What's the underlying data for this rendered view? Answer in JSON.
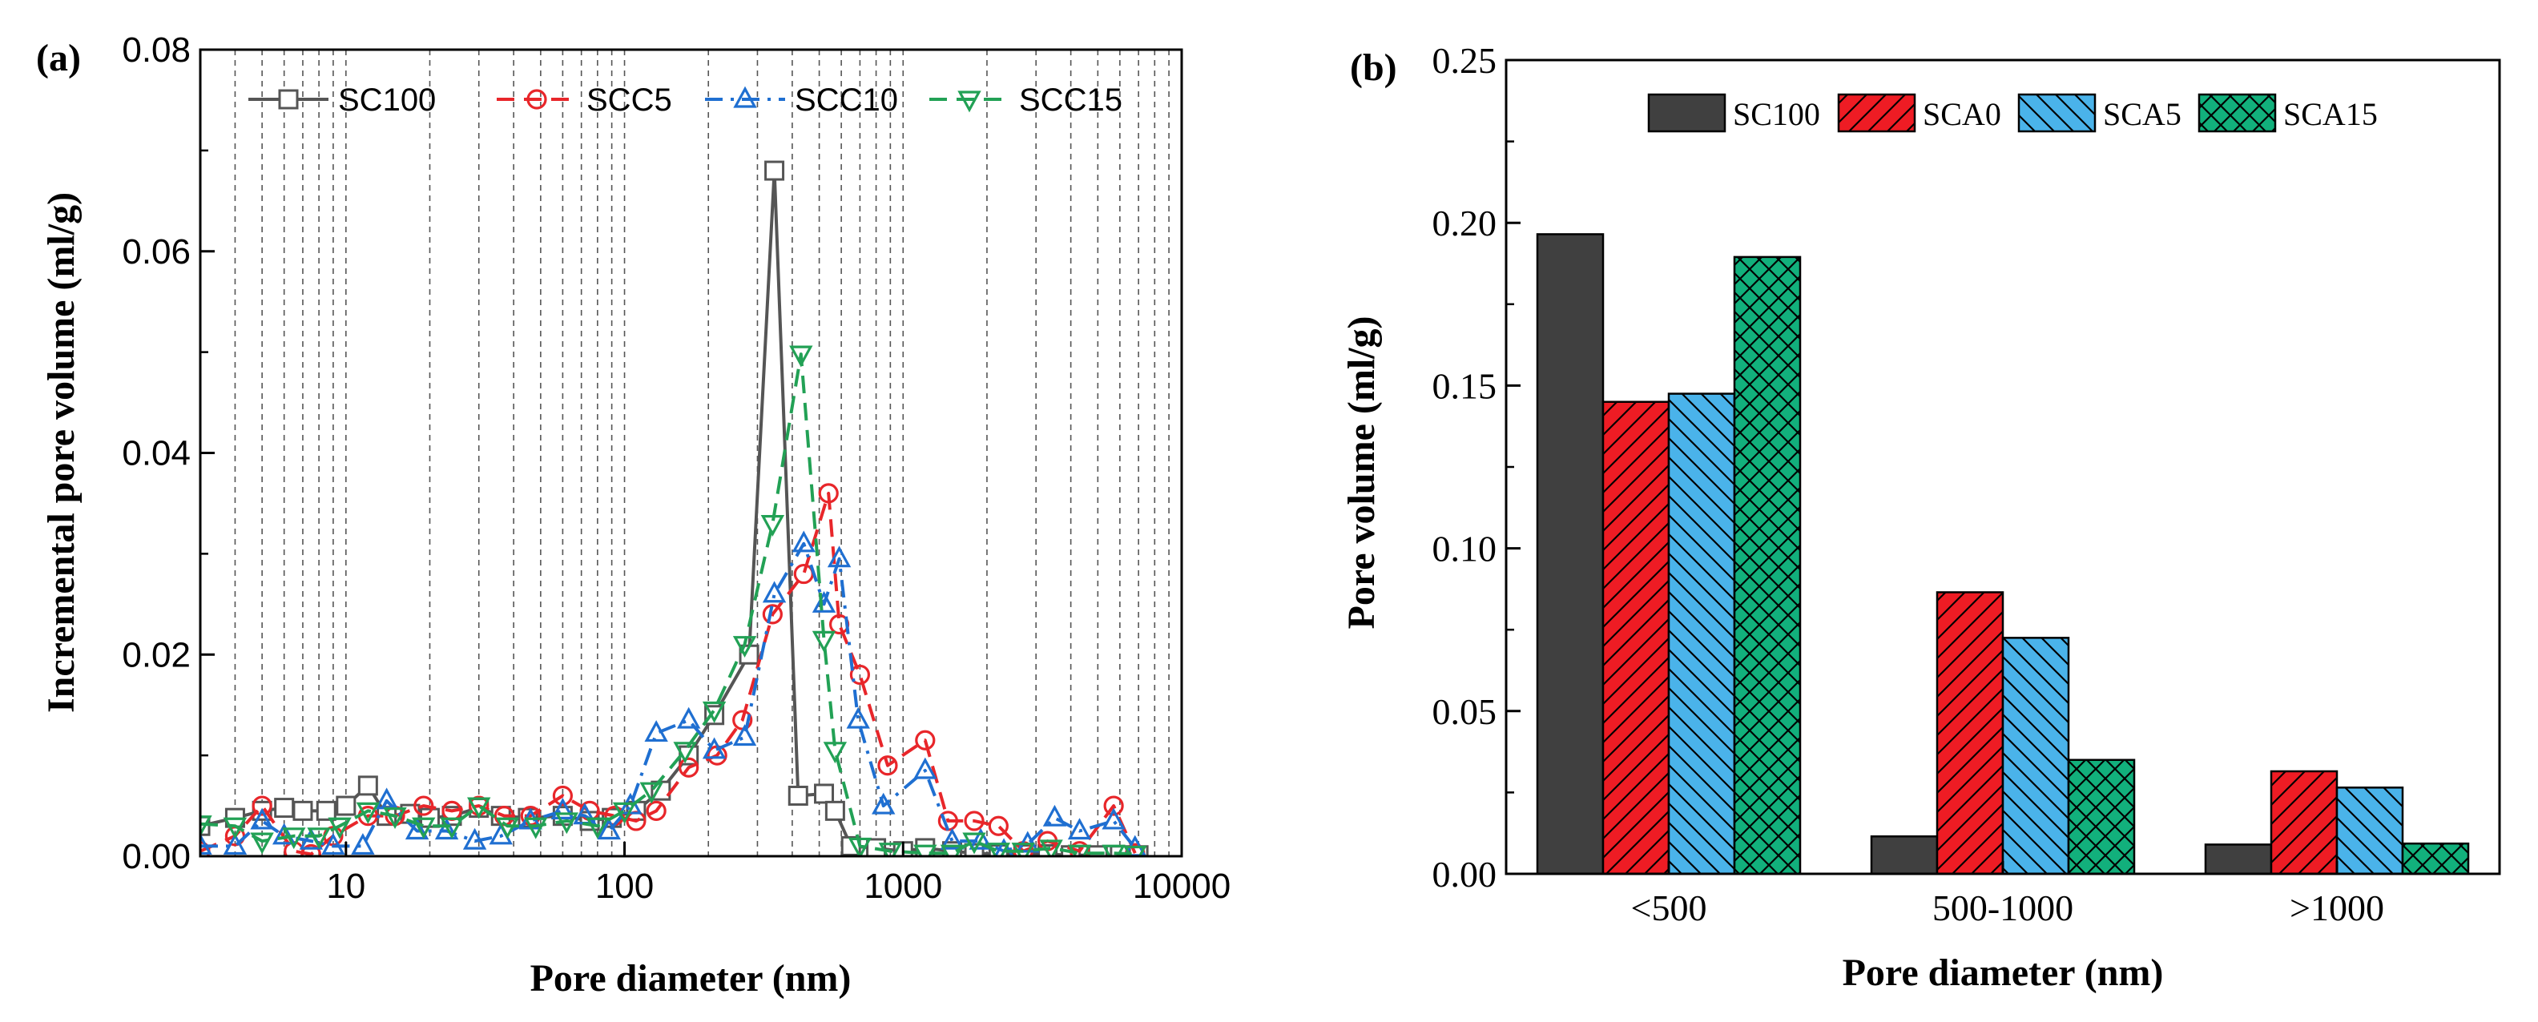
{
  "chart_data": [
    {
      "id": "a",
      "panel_label": "(a)",
      "type": "line",
      "xscale": "log",
      "xlim": [
        3,
        10000
      ],
      "ylim": [
        0,
        0.08
      ],
      "xlabel": "Pore diameter (nm)",
      "ylabel": "Incremental pore volume (ml/g)",
      "xticks": [
        10,
        100,
        1000,
        10000
      ],
      "xtick_labels": [
        "10",
        "100",
        "1000",
        "10000"
      ],
      "yticks": [
        0,
        0.02,
        0.04,
        0.06,
        0.08
      ],
      "ytick_labels": [
        "0.00",
        "0.02",
        "0.04",
        "0.06",
        "0.08"
      ],
      "grid": "vertical dashed at log minor ticks",
      "legend_position": "top",
      "series": [
        {
          "name": "SC100",
          "color": "#555555",
          "marker": "square",
          "dash": "solid",
          "points": [
            [
              3,
              0.003
            ],
            [
              4,
              0.0038
            ],
            [
              5,
              0.0045
            ],
            [
              6,
              0.0048
            ],
            [
              7,
              0.0045
            ],
            [
              8.5,
              0.0045
            ],
            [
              10,
              0.005
            ],
            [
              12,
              0.007
            ],
            [
              14,
              0.004
            ],
            [
              17,
              0.0042
            ],
            [
              20,
              0.0038
            ],
            [
              24,
              0.004
            ],
            [
              30,
              0.0048
            ],
            [
              36,
              0.004
            ],
            [
              45,
              0.0038
            ],
            [
              60,
              0.004
            ],
            [
              75,
              0.0035
            ],
            [
              90,
              0.0038
            ],
            [
              110,
              0.0045
            ],
            [
              135,
              0.0065
            ],
            [
              170,
              0.01
            ],
            [
              210,
              0.014
            ],
            [
              280,
              0.02
            ],
            [
              345,
              0.068
            ],
            [
              420,
              0.006
            ],
            [
              520,
              0.0062
            ],
            [
              570,
              0.0045
            ],
            [
              650,
              0.001
            ],
            [
              800,
              0.0008
            ],
            [
              1000,
              0.0005
            ],
            [
              1200,
              0.0008
            ],
            [
              1500,
              0.0005
            ],
            [
              1800,
              0.0003
            ],
            [
              2200,
              0.0002
            ],
            [
              2700,
              0.0002
            ],
            [
              3300,
              0.0002
            ],
            [
              4000,
              0.0001
            ],
            [
              5000,
              0.0001
            ],
            [
              6000,
              0.0001
            ],
            [
              7000,
              0.0001
            ]
          ]
        },
        {
          "name": "SCC5",
          "color": "#e8262a",
          "marker": "circle",
          "dash": "dash",
          "points": [
            [
              3,
              0.0005
            ],
            [
              4,
              0.002
            ],
            [
              5,
              0.005
            ],
            [
              6.5,
              0.0005
            ],
            [
              7.5,
              0.0002
            ],
            [
              9,
              0.002
            ],
            [
              12,
              0.004
            ],
            [
              15,
              0.004
            ],
            [
              19,
              0.005
            ],
            [
              24,
              0.0045
            ],
            [
              30,
              0.005
            ],
            [
              37,
              0.004
            ],
            [
              46,
              0.004
            ],
            [
              60,
              0.006
            ],
            [
              75,
              0.0045
            ],
            [
              92,
              0.004
            ],
            [
              110,
              0.0035
            ],
            [
              130,
              0.0045
            ],
            [
              170,
              0.0088
            ],
            [
              215,
              0.01
            ],
            [
              265,
              0.0135
            ],
            [
              340,
              0.024
            ],
            [
              440,
              0.028
            ],
            [
              540,
              0.036
            ],
            [
              590,
              0.023
            ],
            [
              700,
              0.018
            ],
            [
              880,
              0.009
            ],
            [
              1200,
              0.0115
            ],
            [
              1450,
              0.0035
            ],
            [
              1800,
              0.0035
            ],
            [
              2200,
              0.003
            ],
            [
              2700,
              0.0005
            ],
            [
              3300,
              0.0015
            ],
            [
              4300,
              0.0005
            ],
            [
              5700,
              0.005
            ],
            [
              6800,
              0.0003
            ]
          ]
        },
        {
          "name": "SCC10",
          "color": "#1f6fd1",
          "marker": "triangle-up",
          "dash": "dashdot",
          "points": [
            [
              3,
              0.001
            ],
            [
              4,
              0.001
            ],
            [
              5,
              0.0035
            ],
            [
              6,
              0.002
            ],
            [
              7.5,
              0.0015
            ],
            [
              9,
              0.001
            ],
            [
              11.5,
              0.001
            ],
            [
              14,
              0.0055
            ],
            [
              18,
              0.0025
            ],
            [
              23,
              0.0025
            ],
            [
              29,
              0.0015
            ],
            [
              36,
              0.002
            ],
            [
              46,
              0.0035
            ],
            [
              60,
              0.0045
            ],
            [
              72,
              0.004
            ],
            [
              88,
              0.0025
            ],
            [
              105,
              0.005
            ],
            [
              130,
              0.0122
            ],
            [
              170,
              0.0135
            ],
            [
              210,
              0.0105
            ],
            [
              270,
              0.0118
            ],
            [
              345,
              0.026
            ],
            [
              440,
              0.031
            ],
            [
              520,
              0.025
            ],
            [
              590,
              0.0295
            ],
            [
              690,
              0.0135
            ],
            [
              850,
              0.005
            ],
            [
              1200,
              0.0085
            ],
            [
              1500,
              0.0015
            ],
            [
              1900,
              0.0015
            ],
            [
              2300,
              0.0005
            ],
            [
              2800,
              0.0012
            ],
            [
              3500,
              0.0038
            ],
            [
              4300,
              0.0025
            ],
            [
              5700,
              0.0035
            ],
            [
              6800,
              0.0008
            ]
          ]
        },
        {
          "name": "SCC15",
          "color": "#22a155",
          "marker": "triangle-down",
          "dash": "dash",
          "points": [
            [
              3,
              0.0032
            ],
            [
              4,
              0.003
            ],
            [
              5,
              0.0015
            ],
            [
              6.5,
              0.002
            ],
            [
              8,
              0.002
            ],
            [
              9.5,
              0.003
            ],
            [
              12,
              0.0045
            ],
            [
              15,
              0.004
            ],
            [
              19,
              0.003
            ],
            [
              24,
              0.003
            ],
            [
              30,
              0.005
            ],
            [
              38,
              0.003
            ],
            [
              48,
              0.003
            ],
            [
              62,
              0.0035
            ],
            [
              80,
              0.003
            ],
            [
              100,
              0.0045
            ],
            [
              125,
              0.0065
            ],
            [
              165,
              0.0105
            ],
            [
              210,
              0.0145
            ],
            [
              270,
              0.021
            ],
            [
              340,
              0.033
            ],
            [
              430,
              0.0498
            ],
            [
              520,
              0.0215
            ],
            [
              570,
              0.0105
            ],
            [
              700,
              0.001
            ],
            [
              900,
              0.0005
            ],
            [
              1200,
              0.0003
            ],
            [
              1500,
              0.0003
            ],
            [
              1800,
              0.0015
            ],
            [
              2200,
              0.0005
            ],
            [
              2700,
              0.0005
            ],
            [
              3400,
              0.0008
            ],
            [
              4300,
              0.0003
            ],
            [
              5700,
              0.0003
            ],
            [
              6800,
              0.0002
            ]
          ]
        }
      ]
    },
    {
      "id": "b",
      "panel_label": "(b)",
      "type": "bar",
      "categories": [
        "<500",
        "500-1000",
        ">1000"
      ],
      "xlabel": "Pore diameter (nm)",
      "ylabel": "Pore volume (ml/g)",
      "ylim": [
        0,
        0.25
      ],
      "yticks": [
        0,
        0.05,
        0.1,
        0.15,
        0.2,
        0.25
      ],
      "ytick_labels": [
        "0.00",
        "0.05",
        "0.10",
        "0.15",
        "0.20",
        "0.25"
      ],
      "legend_position": "top",
      "series": [
        {
          "name": "SC100",
          "color": "#404040",
          "pattern": "solid",
          "values": [
            0.1965,
            0.0115,
            0.009
          ]
        },
        {
          "name": "SCA0",
          "color": "#ee1c24",
          "pattern": "diag-right",
          "values": [
            0.145,
            0.0865,
            0.0315
          ]
        },
        {
          "name": "SCA5",
          "color": "#4ab3ea",
          "pattern": "diag-left",
          "values": [
            0.1475,
            0.0725,
            0.0265
          ]
        },
        {
          "name": "SCA15",
          "color": "#12b07c",
          "pattern": "crosshatch",
          "values": [
            0.1895,
            0.035,
            0.0093
          ]
        }
      ]
    }
  ]
}
